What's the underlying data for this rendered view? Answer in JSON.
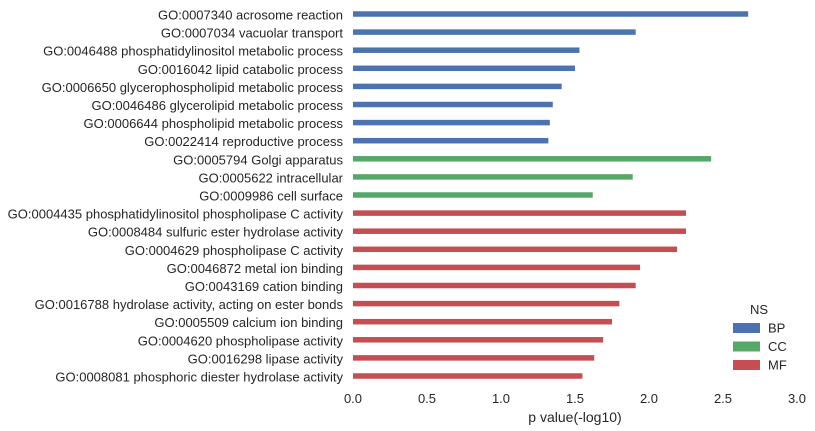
{
  "chart_data": {
    "type": "bar",
    "orientation": "horizontal",
    "xlabel": "p value(-log10)",
    "ylabel": "",
    "xlim": [
      0.0,
      3.0
    ],
    "xticks": [
      "0.0",
      "0.5",
      "1.0",
      "1.5",
      "2.0",
      "2.5",
      "3.0"
    ],
    "grid": false,
    "legend": {
      "title": "NS",
      "placement": "bottom-right",
      "entries": [
        {
          "name": "BP",
          "color": "#4c72b0"
        },
        {
          "name": "CC",
          "color": "#55a868"
        },
        {
          "name": "MF",
          "color": "#c44e52"
        }
      ]
    },
    "categories": [
      {
        "label": "GO:0007340 acrosome reaction",
        "value": 2.67,
        "group": "BP"
      },
      {
        "label": "GO:0007034 vacuolar transport",
        "value": 1.91,
        "group": "BP"
      },
      {
        "label": "GO:0046488 phosphatidylinositol metabolic process",
        "value": 1.53,
        "group": "BP"
      },
      {
        "label": "GO:0016042 lipid catabolic process",
        "value": 1.5,
        "group": "BP"
      },
      {
        "label": "GO:0006650 glycerophospholipid metabolic process",
        "value": 1.41,
        "group": "BP"
      },
      {
        "label": "GO:0046486 glycerolipid metabolic process",
        "value": 1.35,
        "group": "BP"
      },
      {
        "label": "GO:0006644 phospholipid metabolic process",
        "value": 1.33,
        "group": "BP"
      },
      {
        "label": "GO:0022414 reproductive process",
        "value": 1.32,
        "group": "BP"
      },
      {
        "label": "GO:0005794 Golgi apparatus",
        "value": 2.42,
        "group": "CC"
      },
      {
        "label": "GO:0005622 intracellular",
        "value": 1.89,
        "group": "CC"
      },
      {
        "label": "GO:0009986 cell surface",
        "value": 1.62,
        "group": "CC"
      },
      {
        "label": "GO:0004435 phosphatidylinositol phospholipase C activity",
        "value": 2.25,
        "group": "MF"
      },
      {
        "label": "GO:0008484 sulfuric ester hydrolase activity",
        "value": 2.25,
        "group": "MF"
      },
      {
        "label": "GO:0004629 phospholipase C activity",
        "value": 2.19,
        "group": "MF"
      },
      {
        "label": "GO:0046872 metal ion binding",
        "value": 1.94,
        "group": "MF"
      },
      {
        "label": "GO:0043169 cation binding",
        "value": 1.91,
        "group": "MF"
      },
      {
        "label": "GO:0016788 hydrolase activity, acting on ester bonds",
        "value": 1.8,
        "group": "MF"
      },
      {
        "label": "GO:0005509 calcium ion binding",
        "value": 1.75,
        "group": "MF"
      },
      {
        "label": "GO:0004620 phospholipase activity",
        "value": 1.69,
        "group": "MF"
      },
      {
        "label": "GO:0016298 lipase activity",
        "value": 1.63,
        "group": "MF"
      },
      {
        "label": "GO:0008081 phosphoric diester hydrolase activity",
        "value": 1.55,
        "group": "MF"
      }
    ]
  }
}
